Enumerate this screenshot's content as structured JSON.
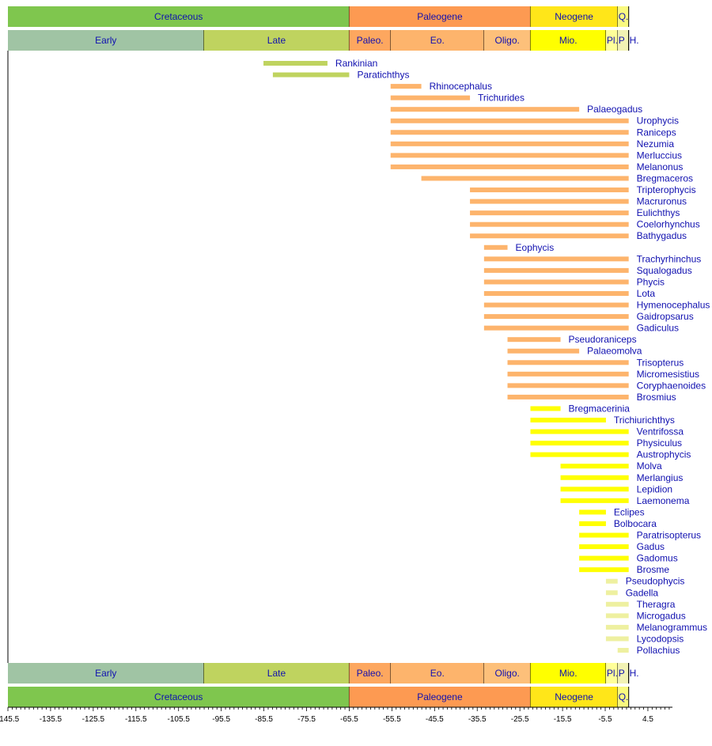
{
  "chart_data": {
    "type": "range-bar timeline",
    "xlim": [
      -145.5,
      10.2
    ],
    "x_ticks": [
      -145.5,
      -135.5,
      -125.5,
      -115.5,
      -105.5,
      -95.5,
      -85.5,
      -75.5,
      -65.5,
      -55.5,
      -45.5,
      -35.5,
      -25.5,
      -15.5,
      -5.5,
      4.5
    ],
    "periods": [
      {
        "label": "Cretaceous",
        "start": -145.5,
        "end": -65.5,
        "color": "#7fc64e"
      },
      {
        "label": "Paleogene",
        "start": -65.5,
        "end": -23.03,
        "color": "#fd9a52"
      },
      {
        "label": "Neogene",
        "start": -23.03,
        "end": -2.588,
        "color": "#ffe619"
      },
      {
        "label": "Q.",
        "start": -2.588,
        "end": 0,
        "color": "#f9f97f"
      }
    ],
    "epochs": [
      {
        "label": "Early",
        "start": -145.5,
        "end": -99.6,
        "color": "#a0c4a4"
      },
      {
        "label": "Late",
        "start": -99.6,
        "end": -65.5,
        "color": "#bfd35f"
      },
      {
        "label": "Paleo.",
        "start": -65.5,
        "end": -55.8,
        "color": "#fda75f"
      },
      {
        "label": "Eo.",
        "start": -55.8,
        "end": -33.9,
        "color": "#fdb46c"
      },
      {
        "label": "Oligo.",
        "start": -33.9,
        "end": -23.03,
        "color": "#fdc07a"
      },
      {
        "label": "Mio.",
        "start": -23.03,
        "end": -5.332,
        "color": "#ffff00"
      },
      {
        "label": "Pl.",
        "start": -5.332,
        "end": -2.588,
        "color": "#ffff99"
      },
      {
        "label": "P",
        "start": -2.588,
        "end": -0.0117,
        "color": "#f2f2b4"
      },
      {
        "label": "H.",
        "start": -0.0117,
        "end": 0,
        "color": "#fdf2e3"
      }
    ],
    "taxa": [
      {
        "name": "Rankinian",
        "start": -85.6,
        "end": -70.6,
        "color": "#bfd35f"
      },
      {
        "name": "Paratichthys",
        "start": -83.4,
        "end": -65.5,
        "color": "#bfd35f"
      },
      {
        "name": "Rhinocephalus",
        "start": -55.8,
        "end": -48.6,
        "color": "#fdb46c"
      },
      {
        "name": "Trichurides",
        "start": -55.8,
        "end": -37.2,
        "color": "#fdb46c"
      },
      {
        "name": "Palaeogadus",
        "start": -55.8,
        "end": -11.6,
        "color": "#fdb46c"
      },
      {
        "name": "Urophycis",
        "start": -55.8,
        "end": 0,
        "color": "#fdb46c"
      },
      {
        "name": "Raniceps",
        "start": -55.8,
        "end": 0,
        "color": "#fdb46c"
      },
      {
        "name": "Nezumia",
        "start": -55.8,
        "end": 0,
        "color": "#fdb46c"
      },
      {
        "name": "Merluccius",
        "start": -55.8,
        "end": 0,
        "color": "#fdb46c"
      },
      {
        "name": "Melanonus",
        "start": -55.8,
        "end": 0,
        "color": "#fdb46c"
      },
      {
        "name": "Bregmaceros",
        "start": -48.6,
        "end": 0,
        "color": "#fdb46c"
      },
      {
        "name": "Tripterophycis",
        "start": -37.2,
        "end": 0,
        "color": "#fdb46c"
      },
      {
        "name": "Macruronus",
        "start": -37.2,
        "end": 0,
        "color": "#fdb46c"
      },
      {
        "name": "Eulichthys",
        "start": -37.2,
        "end": 0,
        "color": "#fdb46c"
      },
      {
        "name": "Coelorhynchus",
        "start": -37.2,
        "end": 0,
        "color": "#fdb46c"
      },
      {
        "name": "Bathygadus",
        "start": -37.2,
        "end": 0,
        "color": "#fdb46c"
      },
      {
        "name": "Eophycis",
        "start": -33.9,
        "end": -28.4,
        "color": "#fdb46c"
      },
      {
        "name": "Trachyrhinchus",
        "start": -33.9,
        "end": 0,
        "color": "#fdb46c"
      },
      {
        "name": "Squalogadus",
        "start": -33.9,
        "end": 0,
        "color": "#fdb46c"
      },
      {
        "name": "Phycis",
        "start": -33.9,
        "end": 0,
        "color": "#fdb46c"
      },
      {
        "name": "Lota",
        "start": -33.9,
        "end": 0,
        "color": "#fdb46c"
      },
      {
        "name": "Hymenocephalus",
        "start": -33.9,
        "end": 0,
        "color": "#fdb46c"
      },
      {
        "name": "Gaidropsarus",
        "start": -33.9,
        "end": 0,
        "color": "#fdb46c"
      },
      {
        "name": "Gadiculus",
        "start": -33.9,
        "end": 0,
        "color": "#fdb46c"
      },
      {
        "name": "Pseudoraniceps",
        "start": -28.4,
        "end": -15.97,
        "color": "#fdb46c"
      },
      {
        "name": "Palaeomolva",
        "start": -28.4,
        "end": -11.6,
        "color": "#fdb46c"
      },
      {
        "name": "Trisopterus",
        "start": -28.4,
        "end": 0,
        "color": "#fdb46c"
      },
      {
        "name": "Micromesistius",
        "start": -28.4,
        "end": 0,
        "color": "#fdb46c"
      },
      {
        "name": "Coryphaenoides",
        "start": -28.4,
        "end": 0,
        "color": "#fdb46c"
      },
      {
        "name": "Brosmius",
        "start": -28.4,
        "end": 0,
        "color": "#fdb46c"
      },
      {
        "name": "Bregmacerinia",
        "start": -23.03,
        "end": -15.97,
        "color": "#ffff00"
      },
      {
        "name": "Trichiurichthys",
        "start": -23.03,
        "end": -5.332,
        "color": "#ffff00"
      },
      {
        "name": "Ventrifossa",
        "start": -23.03,
        "end": 0,
        "color": "#ffff00"
      },
      {
        "name": "Physiculus",
        "start": -23.03,
        "end": 0,
        "color": "#ffff00"
      },
      {
        "name": "Austrophycis",
        "start": -23.03,
        "end": 0,
        "color": "#ffff00"
      },
      {
        "name": "Molva",
        "start": -15.97,
        "end": 0,
        "color": "#ffff00"
      },
      {
        "name": "Merlangius",
        "start": -15.97,
        "end": 0,
        "color": "#ffff00"
      },
      {
        "name": "Lepidion",
        "start": -15.97,
        "end": 0,
        "color": "#ffff00"
      },
      {
        "name": "Laemonema",
        "start": -15.97,
        "end": 0,
        "color": "#ffff00"
      },
      {
        "name": "Eclipes",
        "start": -11.6,
        "end": -5.332,
        "color": "#ffff00"
      },
      {
        "name": "Bolbocara",
        "start": -11.6,
        "end": -5.332,
        "color": "#ffff00"
      },
      {
        "name": "Paratrisopterus",
        "start": -11.6,
        "end": 0,
        "color": "#ffff00"
      },
      {
        "name": "Gadus",
        "start": -11.6,
        "end": 0,
        "color": "#ffff00"
      },
      {
        "name": "Gadomus",
        "start": -11.6,
        "end": 0,
        "color": "#ffff00"
      },
      {
        "name": "Brosme",
        "start": -11.6,
        "end": 0,
        "color": "#ffff00"
      },
      {
        "name": "Pseudophycis",
        "start": -5.332,
        "end": -2.588,
        "color": "#eef0a0"
      },
      {
        "name": "Gadella",
        "start": -5.332,
        "end": -2.588,
        "color": "#eef0a0"
      },
      {
        "name": "Theragra",
        "start": -5.332,
        "end": 0,
        "color": "#eef0a0"
      },
      {
        "name": "Microgadus",
        "start": -5.332,
        "end": 0,
        "color": "#eef0a0"
      },
      {
        "name": "Melanogrammus",
        "start": -5.332,
        "end": 0,
        "color": "#eef0a0"
      },
      {
        "name": "Lycodopsis",
        "start": -5.332,
        "end": 0,
        "color": "#eef0a0"
      },
      {
        "name": "Pollachius",
        "start": -2.588,
        "end": 0,
        "color": "#eef0a0"
      }
    ]
  }
}
